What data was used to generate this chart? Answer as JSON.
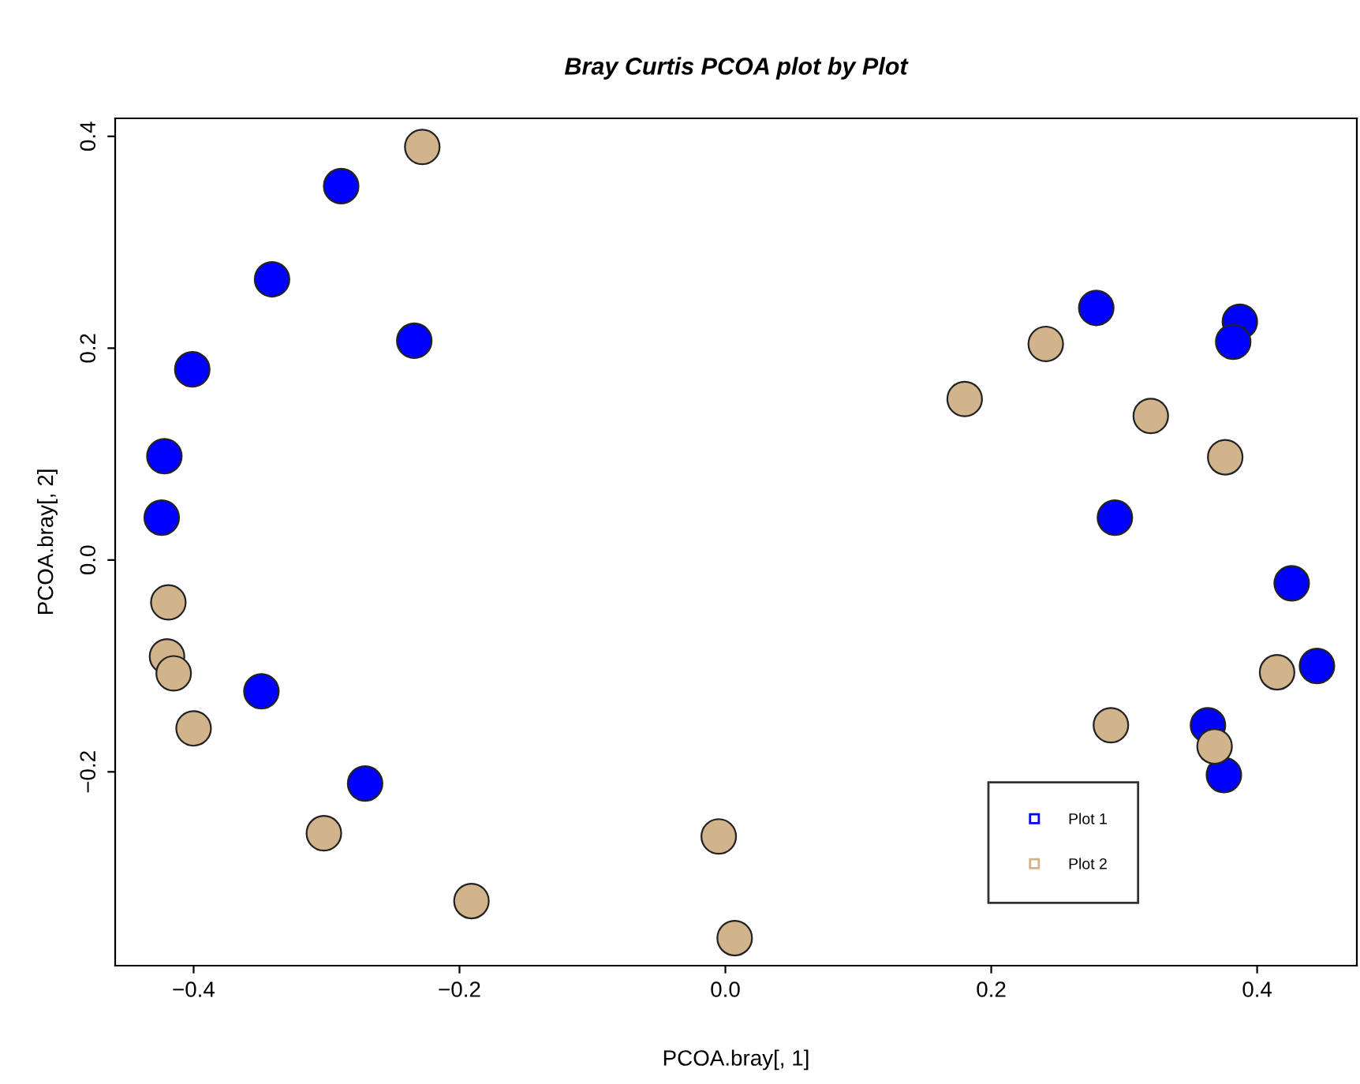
{
  "chart_data": {
    "type": "scatter",
    "title": "Bray Curtis PCOA plot by Plot",
    "xlabel": "PCOA.bray[, 1]",
    "ylabel": "PCOA.bray[, 2]",
    "xlim": [
      -0.459,
      0.475
    ],
    "ylim": [
      -0.383,
      0.417
    ],
    "xticks": [
      {
        "value": -0.4,
        "label": "−0.4"
      },
      {
        "value": -0.2,
        "label": "−0.2"
      },
      {
        "value": 0,
        "label": "0.0"
      },
      {
        "value": 0.2,
        "label": "0.2"
      },
      {
        "value": 0.4,
        "label": "0.4"
      }
    ],
    "yticks": [
      {
        "value": -0.2,
        "label": "−0.2"
      },
      {
        "value": 0,
        "label": "0.0"
      },
      {
        "value": 0.2,
        "label": "0.2"
      },
      {
        "value": 0.4,
        "label": "0.4"
      }
    ],
    "grid": false,
    "legend": "bottom right",
    "marker": "circle",
    "series": [
      {
        "name": "Plot 1",
        "color": "#0000ff",
        "x": [
          -0.289,
          -0.341,
          -0.234,
          -0.401,
          -0.422,
          -0.424,
          -0.349,
          -0.271,
          0.279,
          0.387,
          0.382,
          0.293,
          0.426,
          0.445,
          0.363,
          0.375
        ],
        "values": [
          0.353,
          0.265,
          0.207,
          0.18,
          0.098,
          0.04,
          -0.124,
          -0.211,
          0.238,
          0.225,
          0.206,
          0.04,
          -0.022,
          -0.1,
          -0.156,
          -0.203
        ]
      },
      {
        "name": "Plot 2",
        "color": "#d2b48c",
        "x": [
          -0.228,
          -0.419,
          -0.42,
          -0.415,
          -0.4,
          -0.302,
          -0.191,
          -0.005,
          0.007,
          0.18,
          0.241,
          0.32,
          0.376,
          0.29,
          0.368,
          0.415
        ],
        "values": [
          0.39,
          -0.04,
          -0.091,
          -0.107,
          -0.159,
          -0.258,
          -0.322,
          -0.261,
          -0.357,
          0.152,
          0.204,
          0.136,
          0.097,
          -0.156,
          -0.176,
          -0.106
        ]
      }
    ]
  }
}
